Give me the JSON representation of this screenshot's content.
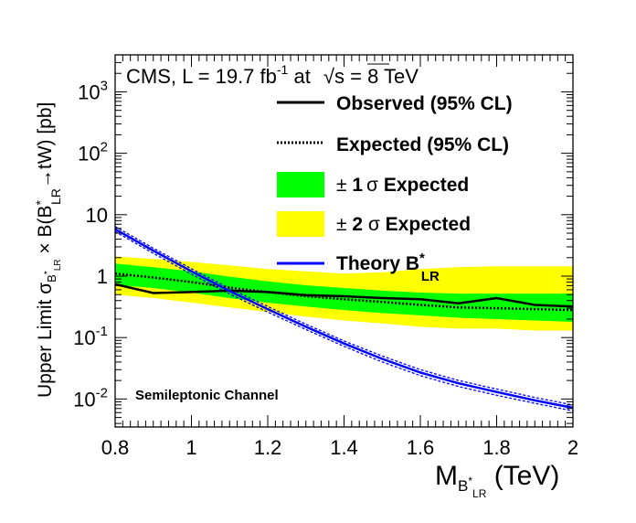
{
  "chart_data": {
    "type": "line",
    "header": {
      "prefix": "CMS, L = 19.7 fb",
      "lumi_exp": "-1",
      "mid": " at ",
      "sqrt": "√s",
      "suffix": " = 8 TeV"
    },
    "annotation": "Semileptonic Channel",
    "ylabel": {
      "part1": "Upper Limit σ",
      "sub_b": "B",
      "sub_star": "*",
      "sub_lr": "LR",
      "part2": " × B(B",
      "star": "*",
      "lr": "LR",
      "part3": "→tW) [pb]"
    },
    "xlabel": {
      "m": "M",
      "sub_b": "B",
      "sub_star": "*",
      "sub_lr": "LR",
      "unit": " (TeV)"
    },
    "x_range": [
      0.8,
      2.0
    ],
    "y_range": [
      0.0035,
      4000
    ],
    "y_scale": "log",
    "x_ticks": [
      {
        "value": 0.8,
        "label": "0.8"
      },
      {
        "value": 1.0,
        "label": "1"
      },
      {
        "value": 1.2,
        "label": "1.2"
      },
      {
        "value": 1.4,
        "label": "1.4"
      },
      {
        "value": 1.6,
        "label": "1.6"
      },
      {
        "value": 1.8,
        "label": "1.8"
      },
      {
        "value": 2.0,
        "label": "2"
      }
    ],
    "y_ticks": [
      {
        "value": 0.01,
        "base": "10",
        "exp": "-2"
      },
      {
        "value": 0.1,
        "base": "10",
        "exp": "-1"
      },
      {
        "value": 1,
        "base": "1",
        "exp": ""
      },
      {
        "value": 10,
        "base": "10",
        "exp": ""
      },
      {
        "value": 100,
        "base": "10",
        "exp": "2"
      },
      {
        "value": 1000,
        "base": "10",
        "exp": "3"
      }
    ],
    "x": [
      0.8,
      0.9,
      1.0,
      1.1,
      1.2,
      1.3,
      1.4,
      1.5,
      1.6,
      1.7,
      1.8,
      1.9,
      2.0
    ],
    "series": [
      {
        "name": "Observed (95% CL)",
        "style": "solid-black",
        "values": [
          0.74,
          0.53,
          0.55,
          0.58,
          0.55,
          0.49,
          0.47,
          0.44,
          0.42,
          0.36,
          0.44,
          0.34,
          0.32
        ]
      },
      {
        "name": "Expected (95% CL)",
        "style": "dotted-black",
        "values": [
          1.1,
          0.95,
          0.8,
          0.65,
          0.55,
          0.47,
          0.42,
          0.38,
          0.34,
          0.31,
          0.3,
          0.29,
          0.28
        ]
      },
      {
        "name": "Theory B*LR",
        "style": "solid-blue",
        "values": [
          5.8,
          2.6,
          1.2,
          0.57,
          0.29,
          0.15,
          0.08,
          0.045,
          0.027,
          0.018,
          0.013,
          0.0095,
          0.0072
        ]
      }
    ],
    "theory_band": {
      "low": [
        5.3,
        2.35,
        1.08,
        0.51,
        0.26,
        0.135,
        0.072,
        0.04,
        0.024,
        0.016,
        0.0115,
        0.0085,
        0.0064
      ],
      "high": [
        6.4,
        2.85,
        1.32,
        0.63,
        0.32,
        0.165,
        0.088,
        0.05,
        0.03,
        0.02,
        0.0145,
        0.0106,
        0.008
      ]
    },
    "band_1sigma": {
      "name": "± 1σ Expected",
      "low": [
        0.72,
        0.64,
        0.54,
        0.44,
        0.37,
        0.32,
        0.28,
        0.25,
        0.23,
        0.21,
        0.2,
        0.19,
        0.18
      ],
      "high": [
        1.6,
        1.4,
        1.2,
        0.98,
        0.82,
        0.71,
        0.64,
        0.58,
        0.54,
        0.52,
        0.52,
        0.52,
        0.52
      ]
    },
    "band_2sigma": {
      "name": "± 2 σ Expected",
      "low": [
        0.5,
        0.44,
        0.37,
        0.31,
        0.26,
        0.22,
        0.19,
        0.17,
        0.15,
        0.14,
        0.14,
        0.13,
        0.13
      ],
      "high": [
        2.1,
        1.9,
        1.7,
        1.5,
        1.3,
        1.2,
        1.1,
        1.15,
        1.3,
        1.4,
        1.45,
        1.45,
        1.45
      ]
    },
    "legend": {
      "placement": "top-right",
      "observed": "Observed (95% CL)",
      "expected": "Expected (95% CL)",
      "sigma1_pm": "±",
      "sigma1_num": " 1",
      "sigma1_sym": "σ",
      "sigma1_text": " Expected",
      "sigma2_pm": "±",
      "sigma2_num": " 2",
      "sigma2_sym": " σ",
      "sigma2_text": " Expected",
      "theory_text": "Theory B",
      "theory_star": "*",
      "theory_sub": "LR"
    },
    "colors": {
      "observed": "#000000",
      "expected": "#000000",
      "sigma1": "#00ff00",
      "sigma2": "#ffff00",
      "theory": "#0000ff"
    }
  }
}
